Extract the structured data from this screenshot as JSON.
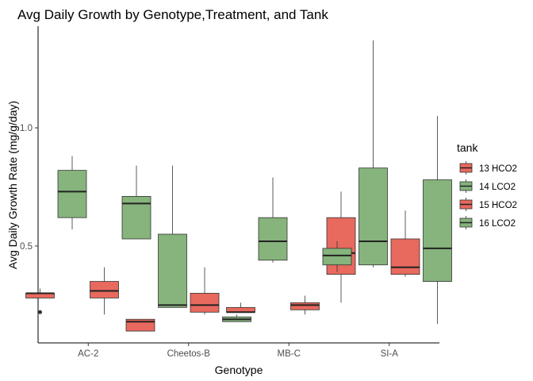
{
  "chart_data": {
    "type": "box",
    "title": "Avg Daily Growth by Genotype,Treatment, and Tank",
    "xlabel": "Genotype",
    "ylabel": "Avg Daily Growth Rate (mg/g/day)",
    "ylim": [
      0.09,
      1.43
    ],
    "yticks": [
      0.5,
      1.0
    ],
    "ytick_labels": [
      "0.5",
      "1.0"
    ],
    "categories": [
      "AC-2",
      "Cheetos-B",
      "MB-C",
      "SI-A"
    ],
    "legend": {
      "title": "tank",
      "position": "right",
      "entries": [
        {
          "label": "13 HCO2",
          "color": "#e8695e"
        },
        {
          "label": "14 LCO2",
          "color": "#86b47c"
        },
        {
          "label": "15 HCO2",
          "color": "#e8695e"
        },
        {
          "label": "16 LCO2",
          "color": "#86b47c"
        }
      ]
    },
    "series": [
      {
        "name": "13 HCO2",
        "color": "#e8695e",
        "boxes": [
          {
            "category": "AC-2",
            "min": 0.28,
            "q1": 0.28,
            "median": 0.3,
            "q3": 0.3,
            "max": 0.32,
            "outliers": [
              0.22
            ]
          },
          {
            "category": "Cheetos-B",
            "min": 0.14,
            "q1": 0.14,
            "median": 0.18,
            "q3": 0.19,
            "max": 0.19,
            "outliers": []
          },
          {
            "category": "MB-C",
            "min": 0.22,
            "q1": 0.22,
            "median": 0.22,
            "q3": 0.24,
            "max": 0.26,
            "outliers": []
          },
          {
            "category": "SI-A",
            "min": 0.26,
            "q1": 0.38,
            "median": 0.47,
            "q3": 0.62,
            "max": 0.73,
            "outliers": []
          }
        ]
      },
      {
        "name": "14 LCO2",
        "color": "#86b47c",
        "boxes": [
          {
            "category": "AC-2",
            "min": 0.57,
            "q1": 0.62,
            "median": 0.73,
            "q3": 0.82,
            "max": 0.88,
            "outliers": []
          },
          {
            "category": "Cheetos-B",
            "min": 0.24,
            "q1": 0.24,
            "median": 0.25,
            "q3": 0.55,
            "max": 0.84,
            "outliers": []
          },
          {
            "category": "MB-C",
            "min": 0.43,
            "q1": 0.44,
            "median": 0.52,
            "q3": 0.62,
            "max": 0.79,
            "outliers": []
          },
          {
            "category": "SI-A",
            "min": 0.41,
            "q1": 0.42,
            "median": 0.52,
            "q3": 0.83,
            "max": 1.37,
            "outliers": []
          }
        ]
      },
      {
        "name": "15 HCO2",
        "color": "#e8695e",
        "boxes": [
          {
            "category": "AC-2",
            "min": 0.21,
            "q1": 0.28,
            "median": 0.31,
            "q3": 0.35,
            "max": 0.41,
            "outliers": []
          },
          {
            "category": "Cheetos-B",
            "min": 0.21,
            "q1": 0.22,
            "median": 0.25,
            "q3": 0.3,
            "max": 0.41,
            "outliers": []
          },
          {
            "category": "MB-C",
            "min": 0.21,
            "q1": 0.23,
            "median": 0.25,
            "q3": 0.26,
            "max": 0.29,
            "outliers": []
          },
          {
            "category": "SI-A",
            "min": 0.37,
            "q1": 0.38,
            "median": 0.41,
            "q3": 0.53,
            "max": 0.65,
            "outliers": []
          }
        ]
      },
      {
        "name": "16 LCO2",
        "color": "#86b47c",
        "boxes": [
          {
            "category": "AC-2",
            "min": 0.53,
            "q1": 0.53,
            "median": 0.68,
            "q3": 0.71,
            "max": 0.84,
            "outliers": []
          },
          {
            "category": "Cheetos-B",
            "min": 0.18,
            "q1": 0.18,
            "median": 0.19,
            "q3": 0.2,
            "max": 0.21,
            "outliers": []
          },
          {
            "category": "MB-C",
            "min": 0.39,
            "q1": 0.42,
            "median": 0.46,
            "q3": 0.49,
            "max": 0.52,
            "outliers": []
          },
          {
            "category": "SI-A",
            "min": 0.17,
            "q1": 0.35,
            "median": 0.49,
            "q3": 0.78,
            "max": 1.05,
            "outliers": []
          }
        ]
      }
    ]
  }
}
